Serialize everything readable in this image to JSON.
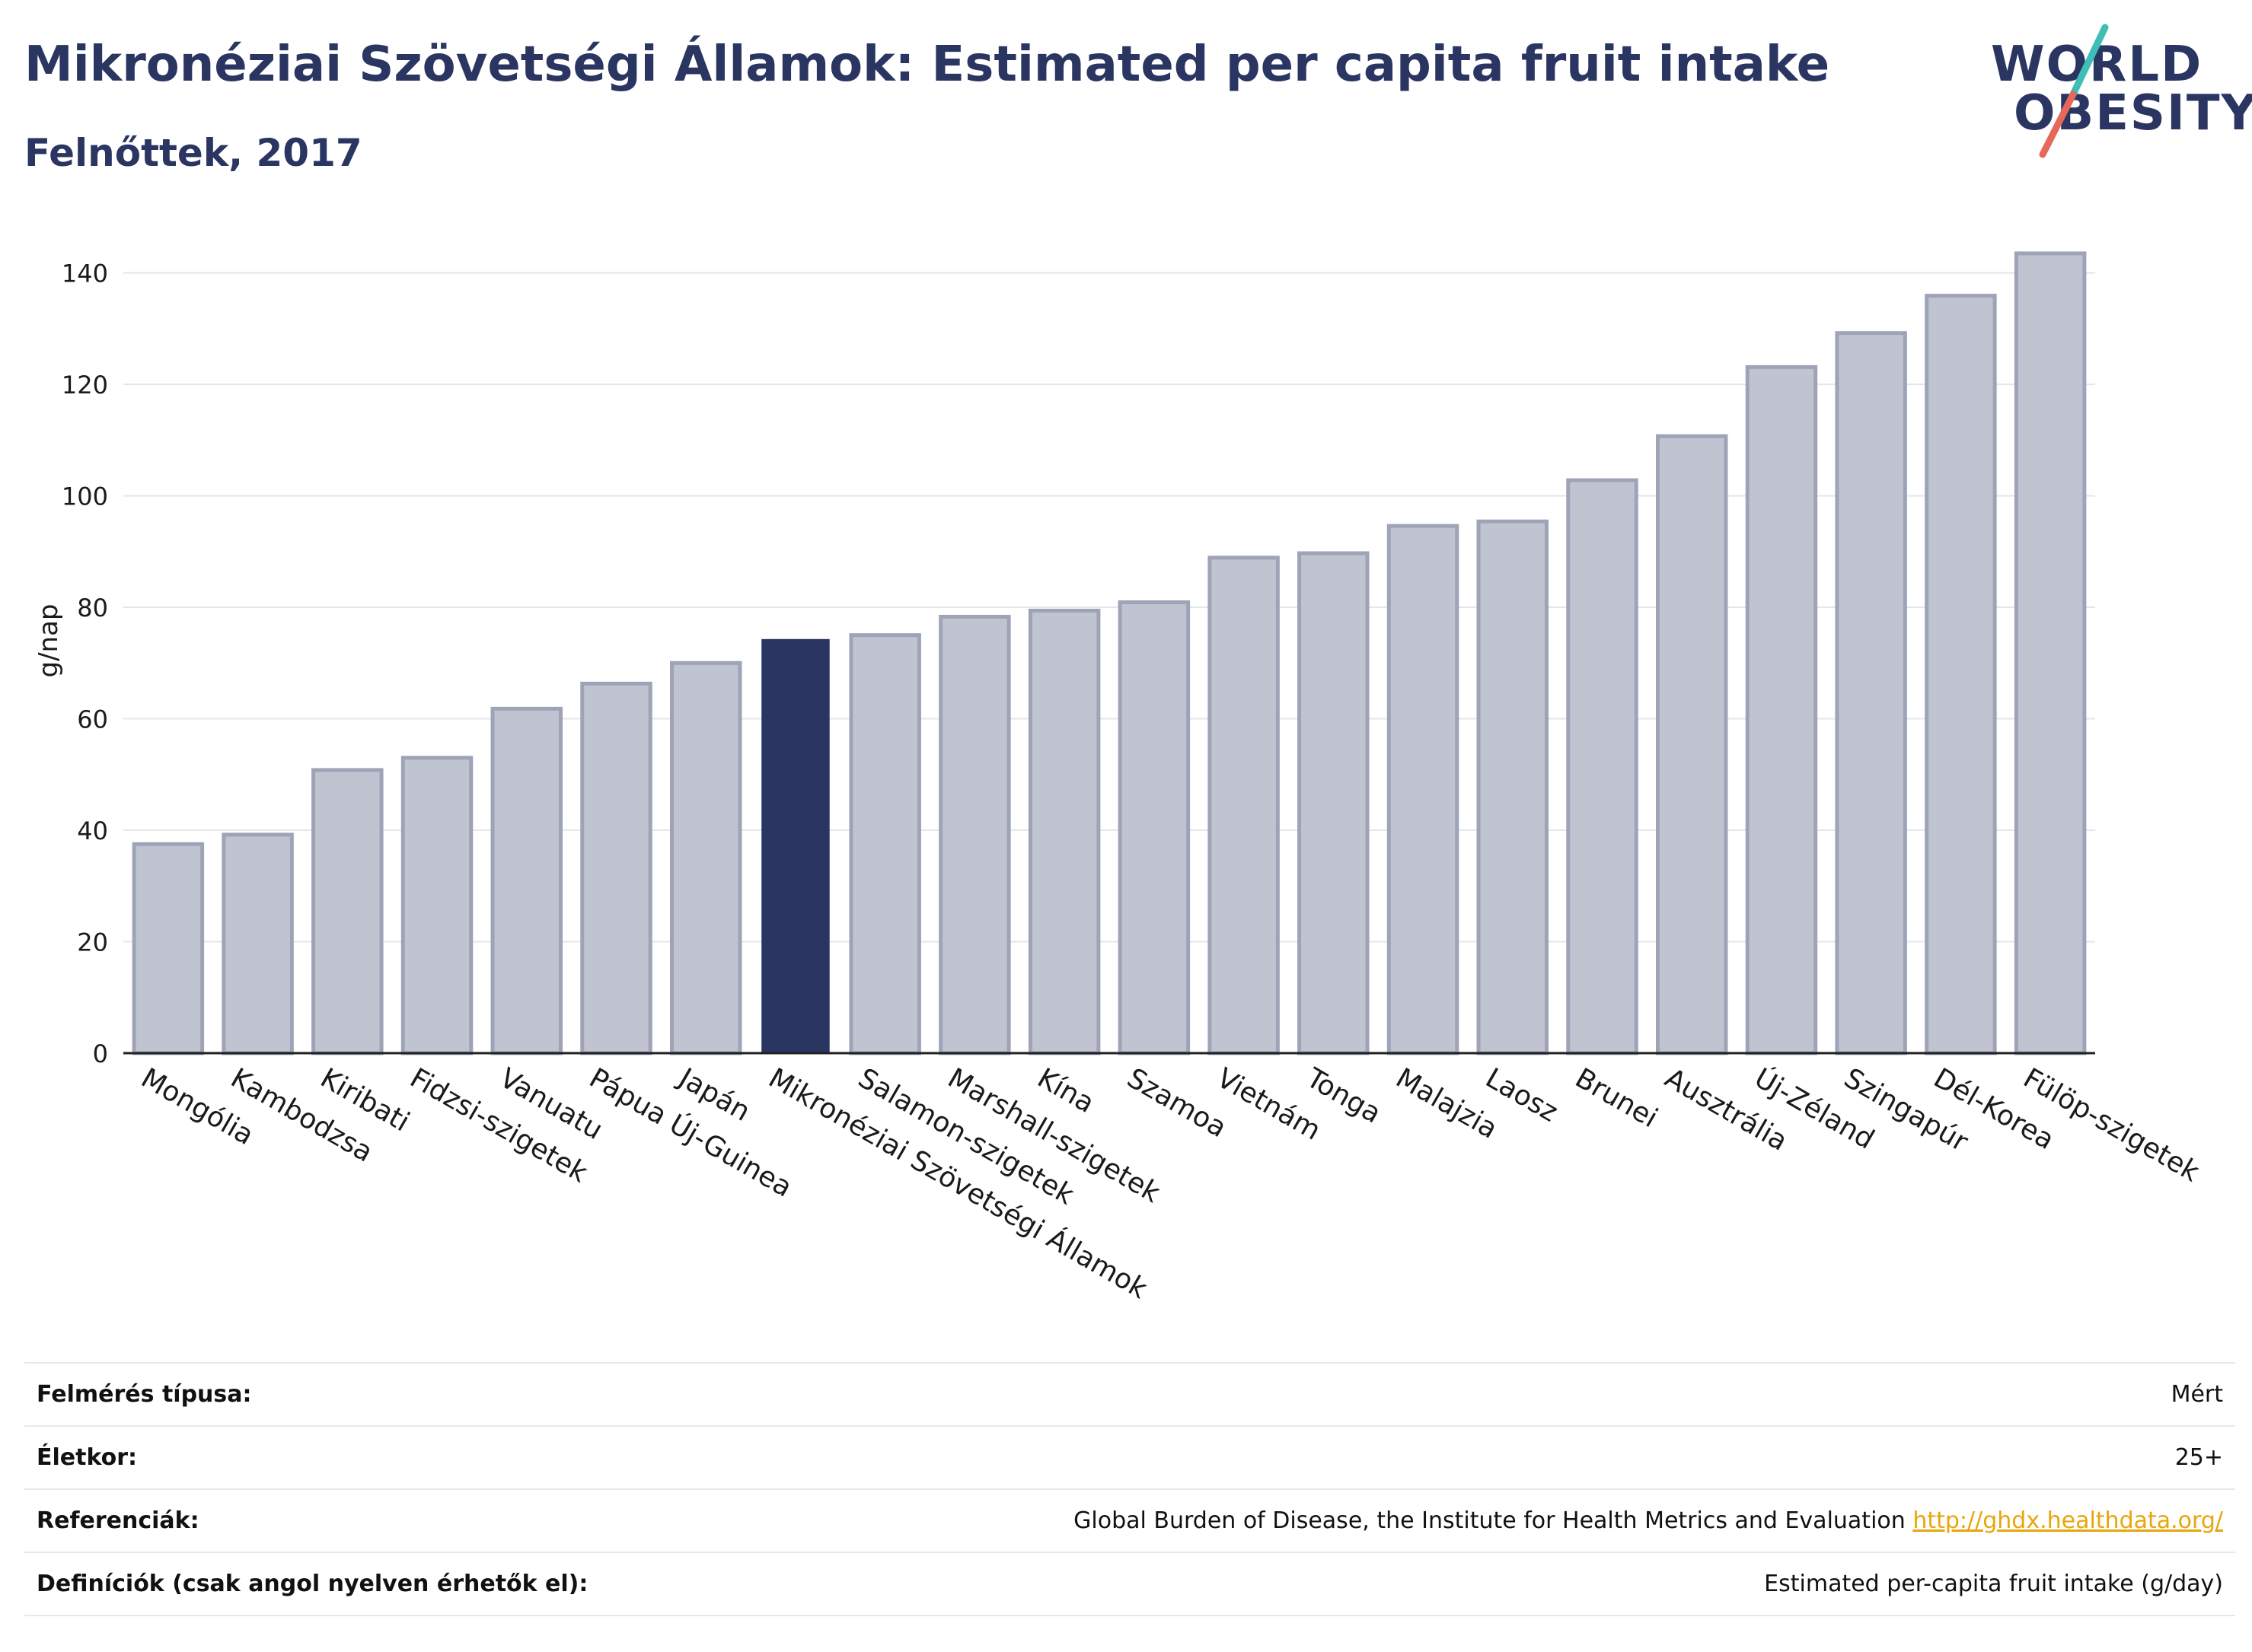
{
  "header": {
    "title": "Mikronéziai Szövetségi Államok: Estimated per capita fruit intake",
    "subtitle": "Felnőttek, 2017"
  },
  "logo": {
    "line1": "WORLD",
    "line2": "OBESITY"
  },
  "colors": {
    "bar": "#c0c4d0",
    "bar_border": "#9ea3b8",
    "highlight": "#2a3561",
    "grid": "#e4e6eb",
    "text": "#1a1a1a"
  },
  "chart_data": {
    "type": "bar",
    "ylabel": "g/nap",
    "xlabel": "",
    "ylim": [
      0,
      148
    ],
    "yticks": [
      0,
      20,
      40,
      60,
      80,
      100,
      120,
      140
    ],
    "grid": true,
    "highlight": "Mikronéziai Szövetségi Államok",
    "categories": [
      "Mongólia",
      "Kambodzsa",
      "Kiribati",
      "Fidzsi-szigetek",
      "Vanuatu",
      "Pápua Új-Guinea",
      "Japán",
      "Mikronéziai Szövetségi Államok",
      "Salamon-szigetek",
      "Marshall-szigetek",
      "Kína",
      "Szamoa",
      "Vietnám",
      "Tonga",
      "Malajzia",
      "Laosz",
      "Brunei",
      "Ausztrália",
      "Új-Zéland",
      "Szingapúr",
      "Dél-Korea",
      "Fülöp-szigetek"
    ],
    "values": [
      37.5,
      39.2,
      50.8,
      53.0,
      61.8,
      66.3,
      70.0,
      74.3,
      75.0,
      78.3,
      79.4,
      80.9,
      88.9,
      89.7,
      94.6,
      95.4,
      102.8,
      110.7,
      123.1,
      129.2,
      135.9,
      143.5
    ]
  },
  "info_table": [
    {
      "key": "Felmérés típusa:",
      "value": "Mért"
    },
    {
      "key": "Életkor:",
      "value": "25+"
    },
    {
      "key": "Referenciák:",
      "value": "Global Burden of Disease, the Institute for Health Metrics and Evaluation ",
      "link": "http://ghdx.healthdata.org/"
    },
    {
      "key": "Definíciók (csak angol nyelven érhetők el):",
      "value": "Estimated per-capita fruit intake (g/day)"
    }
  ]
}
